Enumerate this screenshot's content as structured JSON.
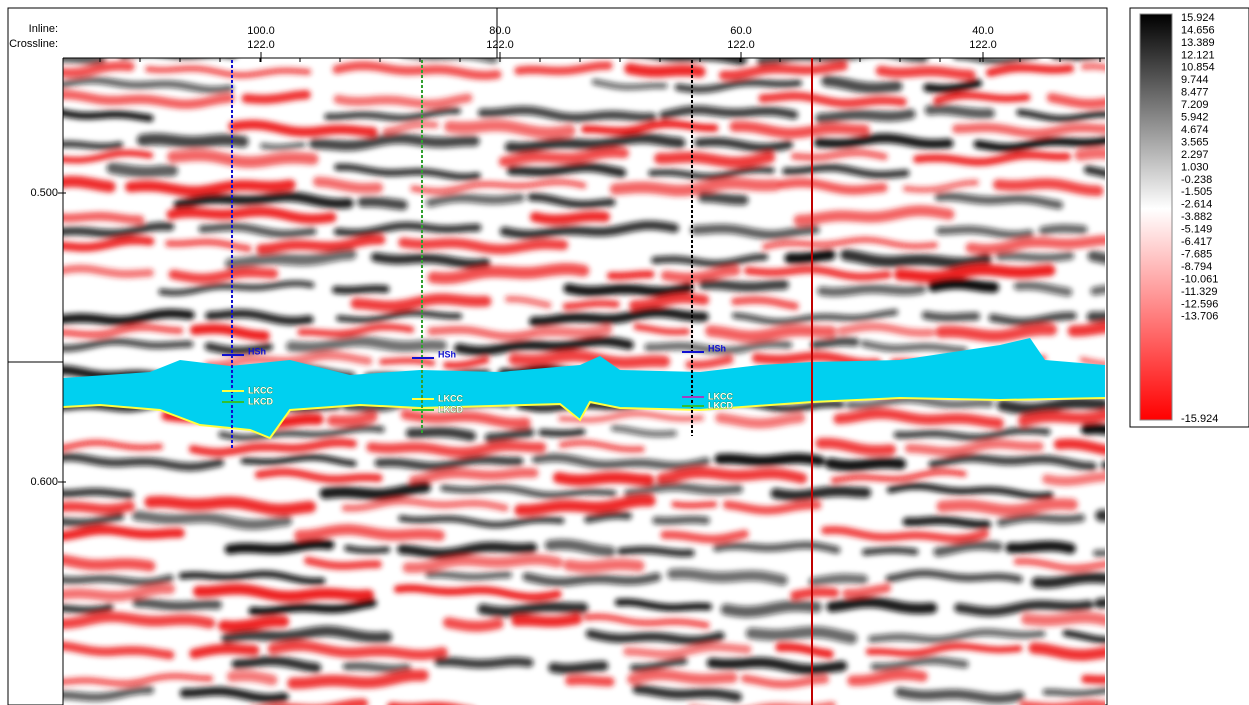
{
  "axis": {
    "row_labels": [
      "Inline:",
      "Crossline:"
    ],
    "x_ticks": [
      {
        "inline": "100.0",
        "crossline": "122.0"
      },
      {
        "inline": "80.0",
        "crossline": "122.0"
      },
      {
        "inline": "60.0",
        "crossline": "122.0"
      },
      {
        "inline": "40.0",
        "crossline": "122.0"
      }
    ],
    "y_ticks": [
      "0.500",
      "0.600"
    ]
  },
  "colorbar": {
    "labels": [
      "15.924",
      "14.656",
      "13.389",
      "12.121",
      "10.854",
      "9.744",
      "8.477",
      "7.209",
      "5.942",
      "4.674",
      "3.565",
      "2.297",
      "1.030",
      "-0.238",
      "-1.505",
      "-2.614",
      "-3.882",
      "-5.149",
      "-6.417",
      "-7.685",
      "-8.794",
      "-10.061",
      "-11.329",
      "-12.596",
      "-13.706",
      "-15.924"
    ]
  },
  "wells": [
    {
      "markers": [
        "HSh",
        "LKCC",
        "LKCD"
      ]
    },
    {
      "markers": [
        "HSh",
        "LKCC",
        "LKCD"
      ]
    },
    {
      "markers": [
        "HSh",
        "LKCC",
        "LKCD"
      ]
    }
  ]
}
